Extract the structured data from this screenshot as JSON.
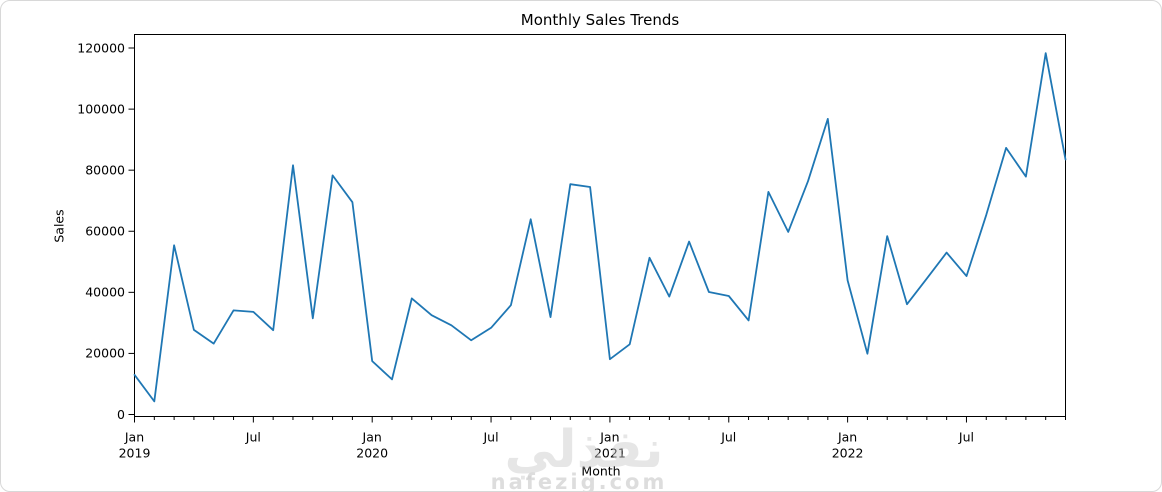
{
  "chart_data": {
    "type": "line",
    "title": "Monthly Sales Trends",
    "xlabel": "Month",
    "ylabel": "Sales",
    "line_color": "#1f77b4",
    "ylim": [
      0,
      120000
    ],
    "grid": false,
    "legend": false,
    "y_ticks": [
      0,
      20000,
      40000,
      60000,
      80000,
      100000,
      120000
    ],
    "x_major_ticks": [
      {
        "month": "Jan",
        "year": "2019"
      },
      {
        "month": "Jul",
        "year": ""
      },
      {
        "month": "Jan",
        "year": "2020"
      },
      {
        "month": "Jul",
        "year": ""
      },
      {
        "month": "Jan",
        "year": "2021"
      },
      {
        "month": "Jul",
        "year": ""
      },
      {
        "month": "Jan",
        "year": "2022"
      },
      {
        "month": "Jul",
        "year": ""
      }
    ],
    "categories": [
      "Jan 2019",
      "Feb 2019",
      "Mar 2019",
      "Apr 2019",
      "May 2019",
      "Jun 2019",
      "Jul 2019",
      "Aug 2019",
      "Sep 2019",
      "Oct 2019",
      "Nov 2019",
      "Dec 2019",
      "Jan 2020",
      "Feb 2020",
      "Mar 2020",
      "Apr 2020",
      "May 2020",
      "Jun 2020",
      "Jul 2020",
      "Aug 2020",
      "Sep 2020",
      "Oct 2020",
      "Nov 2020",
      "Dec 2020",
      "Jan 2021",
      "Feb 2021",
      "Mar 2021",
      "Apr 2021",
      "May 2021",
      "Jun 2021",
      "Jul 2021",
      "Aug 2021",
      "Sep 2021",
      "Oct 2021",
      "Nov 2021",
      "Dec 2021",
      "Jan 2022",
      "Feb 2022",
      "Mar 2022",
      "Apr 2022",
      "May 2022",
      "Jun 2022",
      "Jul 2022",
      "Aug 2022",
      "Sep 2022",
      "Oct 2022",
      "Nov 2022",
      "Dec 2022"
    ],
    "values": [
      13000,
      4300,
      55400,
      27700,
      23200,
      34100,
      33600,
      27600,
      81600,
      31500,
      78300,
      69500,
      17500,
      11500,
      38000,
      32500,
      29200,
      24300,
      28400,
      35800,
      63900,
      31900,
      75400,
      74500,
      18100,
      23000,
      51300,
      38600,
      56600,
      40100,
      38800,
      30800,
      72900,
      59800,
      76400,
      96800,
      43900,
      19900,
      58400,
      36100,
      44500,
      53000,
      45300,
      65400,
      87300,
      77900,
      118300,
      83500
    ]
  },
  "watermark": {
    "logo_text": "نفذلي",
    "site_text": "nafezig.com"
  }
}
